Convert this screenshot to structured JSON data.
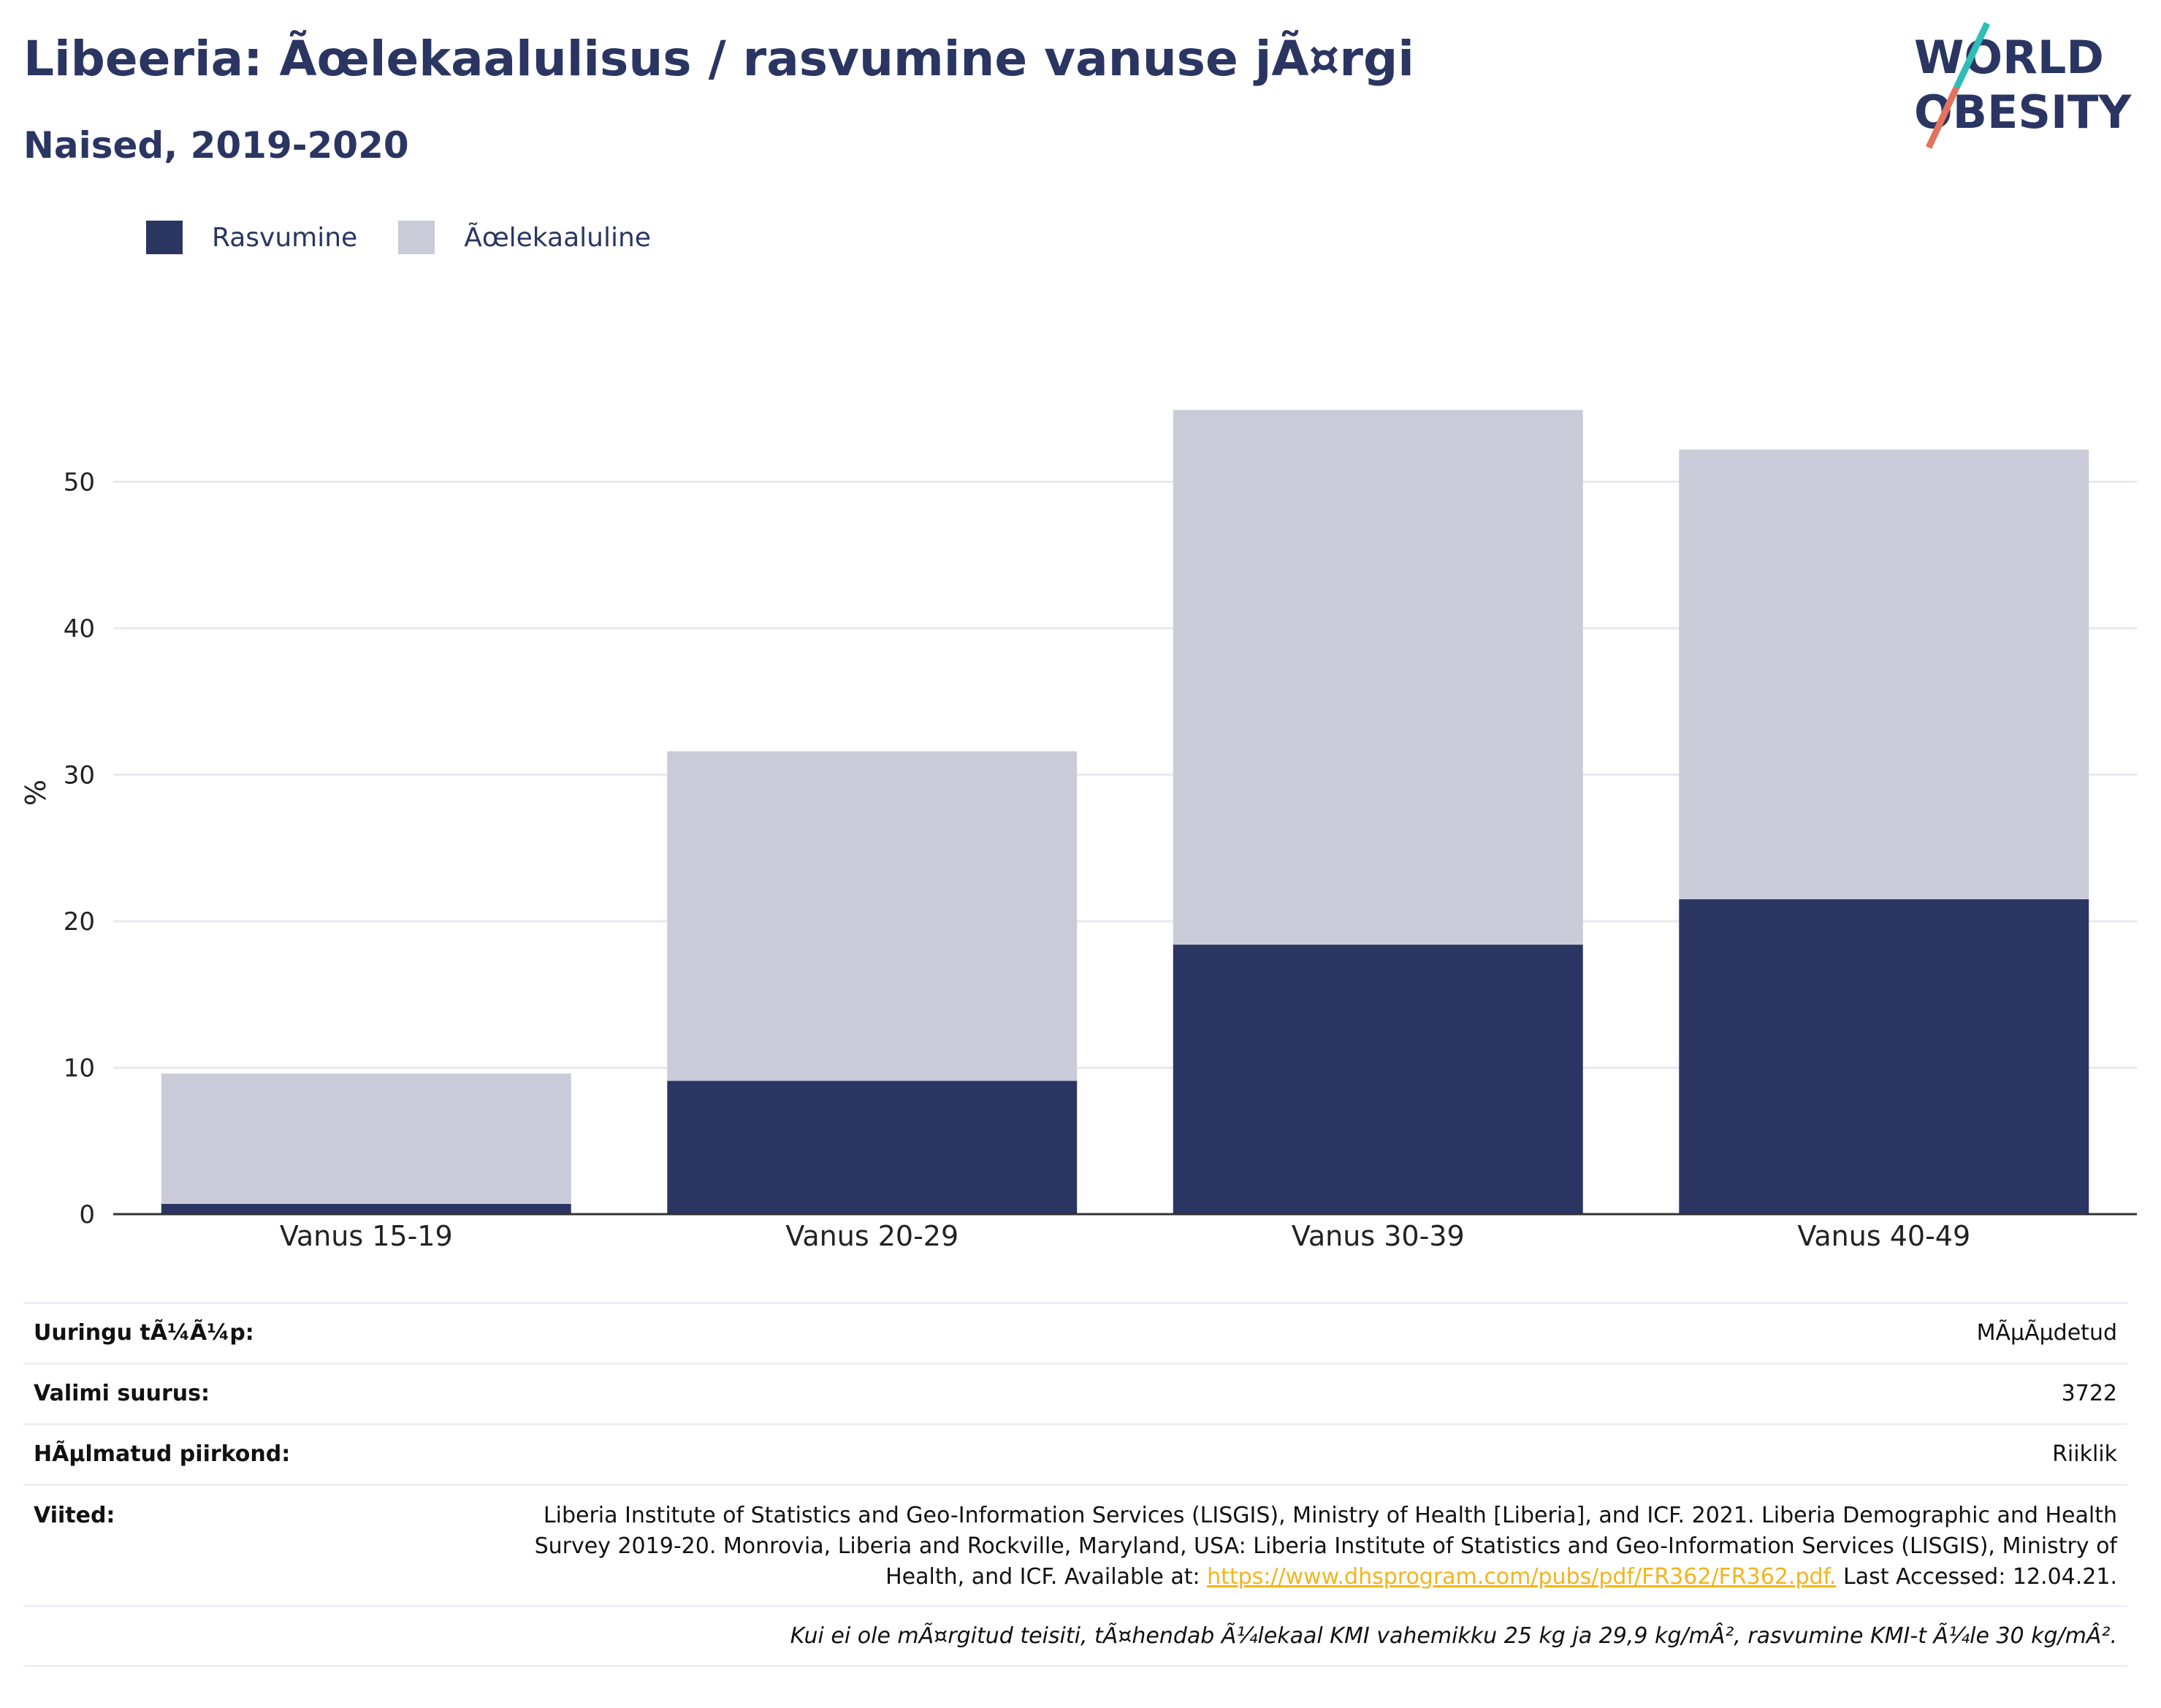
{
  "header": {
    "title": "Libeeria: Ãœlekaalulisus / rasvumine vanuse jÃ¤rgi",
    "subtitle": "Naised, 2019-2020",
    "logo_line1": "WORLD",
    "logo_line2": "OBESITY"
  },
  "legend": {
    "items": [
      {
        "label": "Rasvumine",
        "color": "#2a3562"
      },
      {
        "label": "Ãœlekaaluline",
        "color": "#c9ccd8"
      }
    ]
  },
  "chart_data": {
    "type": "bar",
    "stacked": true,
    "categories": [
      "Vanus 15-19",
      "Vanus 20-29",
      "Vanus 30-39",
      "Vanus 40-49"
    ],
    "series": [
      {
        "name": "Rasvumine",
        "color": "#2a3562",
        "values": [
          0.7,
          9.1,
          18.4,
          21.5
        ]
      },
      {
        "name": "Ãœlekaaluline",
        "color": "#c9ccd8",
        "values": [
          8.9,
          22.5,
          36.5,
          30.7
        ]
      }
    ],
    "ylabel": "%",
    "yticks": [
      0,
      10,
      20,
      30,
      40,
      50
    ],
    "ylim": [
      0,
      56
    ],
    "grid": true,
    "legend_position": "top-left"
  },
  "info": {
    "survey_type_label": "Uuringu tÃ¼Ã¼p:",
    "survey_type_value": "MÃµÃµdetud",
    "sample_size_label": "Valimi suurus:",
    "sample_size_value": "3722",
    "area_label": "HÃµlmatud piirkond:",
    "area_value": "Riiklik",
    "references_label": "Viited:",
    "references_text": "Liberia Institute of Statistics and Geo-Information Services (LISGIS), Ministry of Health [Liberia], and ICF. 2021. Liberia Demographic and Health Survey 2019-20. Monrovia, Liberia and Rockville, Maryland, USA: Liberia Institute of Statistics and Geo-Information Services (LISGIS), Ministry of Health, and ICF. Available at: ",
    "references_link": "https://www.dhsprogram.com/pubs/pdf/FR362/FR362.pdf.",
    "references_tail": " Last Accessed: 12.04.21.",
    "footnote": "Kui ei ole mÃ¤rgitud teisiti, tÃ¤hendab Ã¼lekaal KMI vahemikku 25 kg ja 29,9 kg/mÂ², rasvumine KMI-t Ã¼le 30 kg/mÂ²."
  }
}
